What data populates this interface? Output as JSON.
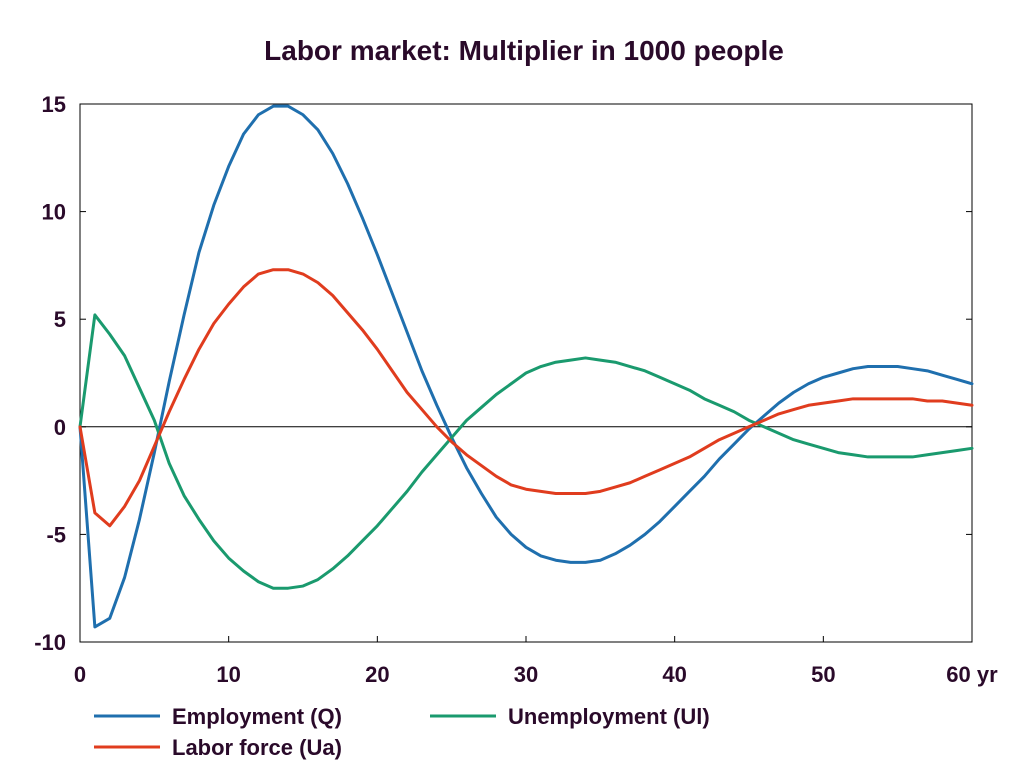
{
  "chart_data": {
    "type": "line",
    "title": "Labor market: Multiplier in 1000 people",
    "xlabel": "",
    "ylabel": "",
    "x_unit_label": "60 yr",
    "xlim": [
      0,
      60
    ],
    "ylim": [
      -10,
      15
    ],
    "x_ticks": [
      0,
      10,
      20,
      30,
      40,
      50,
      60
    ],
    "x_tick_labels": [
      "0",
      "10",
      "20",
      "30",
      "40",
      "50",
      "60 yr"
    ],
    "y_ticks": [
      15,
      10,
      5,
      0,
      -5,
      -10
    ],
    "y_tick_labels": [
      "15",
      "10",
      "5",
      "0",
      "-5",
      "-10"
    ],
    "grid": false,
    "legend_position": "bottom",
    "x": [
      0,
      1,
      2,
      3,
      4,
      5,
      6,
      7,
      8,
      9,
      10,
      11,
      12,
      13,
      14,
      15,
      16,
      17,
      18,
      19,
      20,
      21,
      22,
      23,
      24,
      25,
      26,
      27,
      28,
      29,
      30,
      31,
      32,
      33,
      34,
      35,
      36,
      37,
      38,
      39,
      40,
      41,
      42,
      43,
      44,
      45,
      46,
      47,
      48,
      49,
      50,
      51,
      52,
      53,
      54,
      55,
      56,
      57,
      58,
      59,
      60
    ],
    "series": [
      {
        "name": "Employment (Q)",
        "color": "#1f6fae",
        "values": [
          0,
          -9.3,
          -8.9,
          -7.0,
          -4.3,
          -1.2,
          2.1,
          5.2,
          8.1,
          10.3,
          12.1,
          13.6,
          14.5,
          14.9,
          14.9,
          14.5,
          13.8,
          12.7,
          11.3,
          9.7,
          8.0,
          6.2,
          4.4,
          2.6,
          1.0,
          -0.5,
          -1.9,
          -3.1,
          -4.2,
          -5.0,
          -5.6,
          -6.0,
          -6.2,
          -6.3,
          -6.3,
          -6.2,
          -5.9,
          -5.5,
          -5.0,
          -4.4,
          -3.7,
          -3.0,
          -2.3,
          -1.5,
          -0.8,
          -0.1,
          0.5,
          1.1,
          1.6,
          2.0,
          2.3,
          2.5,
          2.7,
          2.8,
          2.8,
          2.8,
          2.7,
          2.6,
          2.4,
          2.2,
          2.0
        ]
      },
      {
        "name": "Unemployment (Ul)",
        "color": "#1a9a6e",
        "values": [
          0,
          5.2,
          4.3,
          3.3,
          1.8,
          0.3,
          -1.7,
          -3.2,
          -4.3,
          -5.3,
          -6.1,
          -6.7,
          -7.2,
          -7.5,
          -7.5,
          -7.4,
          -7.1,
          -6.6,
          -6.0,
          -5.3,
          -4.6,
          -3.8,
          -3.0,
          -2.1,
          -1.3,
          -0.5,
          0.3,
          0.9,
          1.5,
          2.0,
          2.5,
          2.8,
          3.0,
          3.1,
          3.2,
          3.1,
          3.0,
          2.8,
          2.6,
          2.3,
          2.0,
          1.7,
          1.3,
          1.0,
          0.7,
          0.3,
          0.0,
          -0.3,
          -0.6,
          -0.8,
          -1.0,
          -1.2,
          -1.3,
          -1.4,
          -1.4,
          -1.4,
          -1.4,
          -1.3,
          -1.2,
          -1.1,
          -1.0
        ]
      },
      {
        "name": "Labor force (Ua)",
        "color": "#e03c1e",
        "values": [
          0,
          -4.0,
          -4.6,
          -3.7,
          -2.5,
          -0.9,
          0.7,
          2.2,
          3.6,
          4.8,
          5.7,
          6.5,
          7.1,
          7.3,
          7.3,
          7.1,
          6.7,
          6.1,
          5.3,
          4.5,
          3.6,
          2.6,
          1.6,
          0.8,
          0.0,
          -0.7,
          -1.3,
          -1.8,
          -2.3,
          -2.7,
          -2.9,
          -3.0,
          -3.1,
          -3.1,
          -3.1,
          -3.0,
          -2.8,
          -2.6,
          -2.3,
          -2.0,
          -1.7,
          -1.4,
          -1.0,
          -0.6,
          -0.3,
          0.0,
          0.3,
          0.6,
          0.8,
          1.0,
          1.1,
          1.2,
          1.3,
          1.3,
          1.3,
          1.3,
          1.3,
          1.2,
          1.2,
          1.1,
          1.0
        ]
      }
    ]
  }
}
